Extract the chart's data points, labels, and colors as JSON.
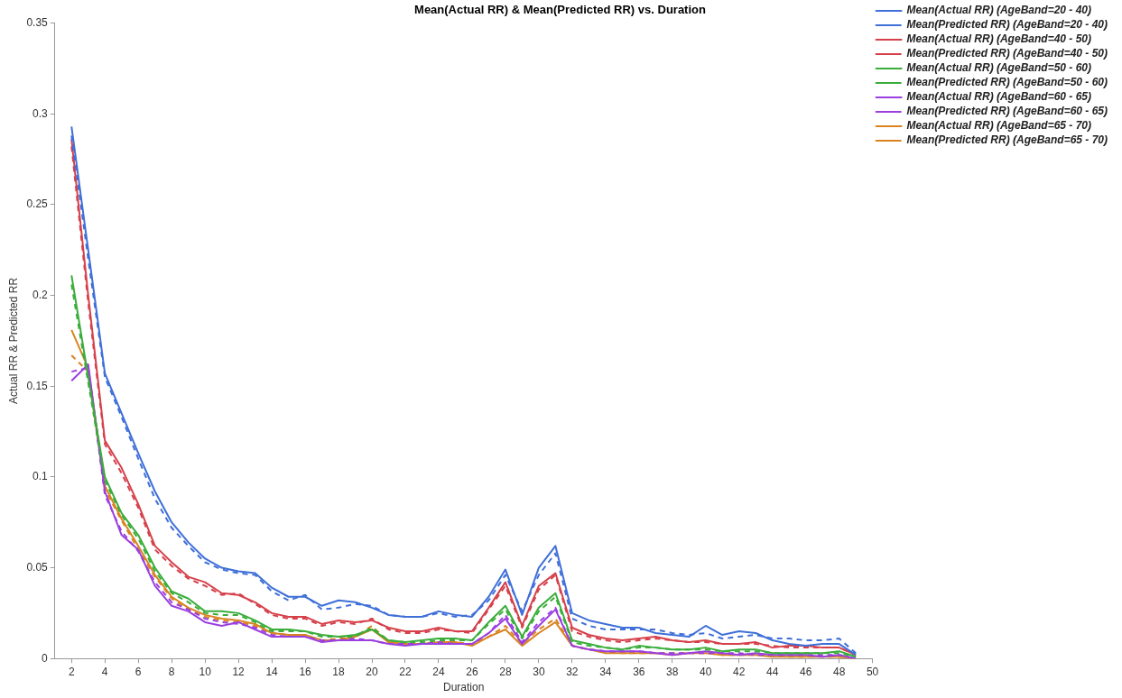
{
  "chart_data": {
    "type": "line",
    "title": "Mean(Actual RR) & Mean(Predicted RR) vs. Duration",
    "xlabel": "Duration",
    "ylabel": "Actual RR & Predicted RR",
    "x": [
      2,
      3,
      4,
      5,
      6,
      7,
      8,
      9,
      10,
      11,
      12,
      13,
      14,
      15,
      16,
      17,
      18,
      19,
      20,
      21,
      22,
      23,
      24,
      25,
      26,
      27,
      28,
      29,
      30,
      31,
      32,
      33,
      34,
      35,
      36,
      37,
      38,
      39,
      40,
      41,
      42,
      43,
      44,
      45,
      46,
      47,
      48,
      49
    ],
    "xlim": [
      1,
      50
    ],
    "xticks": [
      2,
      4,
      6,
      8,
      10,
      12,
      14,
      16,
      18,
      20,
      22,
      24,
      26,
      28,
      30,
      32,
      34,
      36,
      38,
      40,
      42,
      44,
      46,
      48,
      50
    ],
    "ylim": [
      0,
      0.35
    ],
    "yticks": [
      0,
      0.05,
      0.1,
      0.15,
      0.2,
      0.25,
      0.3,
      0.35
    ],
    "grid": false,
    "legend": "top right",
    "marker": "none",
    "series": [
      {
        "name": "Mean(Actual RR) (AgeBand=20 - 40)",
        "color": "#3f6fd8",
        "line_style": "solid",
        "values": [
          0.293,
          0.225,
          0.157,
          0.135,
          0.113,
          0.092,
          0.075,
          0.064,
          0.055,
          0.05,
          0.048,
          0.047,
          0.039,
          0.034,
          0.034,
          0.029,
          0.032,
          0.031,
          0.028,
          0.024,
          0.023,
          0.023,
          0.026,
          0.024,
          0.023,
          0.034,
          0.049,
          0.024,
          0.05,
          0.062,
          0.025,
          0.021,
          0.019,
          0.017,
          0.017,
          0.014,
          0.013,
          0.012,
          0.018,
          0.013,
          0.015,
          0.014,
          0.01,
          0.008,
          0.007,
          0.008,
          0.008,
          0.002
        ]
      },
      {
        "name": "Mean(Predicted RR) (AgeBand=20 - 40)",
        "color": "#3f6fd8",
        "line_style": "dashed",
        "values": [
          0.288,
          0.22,
          0.155,
          0.133,
          0.11,
          0.088,
          0.072,
          0.062,
          0.053,
          0.049,
          0.047,
          0.046,
          0.037,
          0.032,
          0.035,
          0.027,
          0.028,
          0.03,
          0.029,
          0.024,
          0.023,
          0.023,
          0.025,
          0.023,
          0.024,
          0.032,
          0.046,
          0.026,
          0.046,
          0.058,
          0.022,
          0.018,
          0.016,
          0.016,
          0.016,
          0.016,
          0.014,
          0.013,
          0.014,
          0.011,
          0.012,
          0.013,
          0.011,
          0.011,
          0.01,
          0.01,
          0.011,
          0.003
        ]
      },
      {
        "name": "Mean(Actual RR) (AgeBand=40 - 50)",
        "color": "#d6404a",
        "line_style": "solid",
        "values": [
          0.286,
          0.2,
          0.12,
          0.105,
          0.085,
          0.062,
          0.053,
          0.045,
          0.042,
          0.036,
          0.035,
          0.031,
          0.025,
          0.023,
          0.023,
          0.019,
          0.021,
          0.02,
          0.021,
          0.017,
          0.015,
          0.015,
          0.017,
          0.015,
          0.015,
          0.028,
          0.042,
          0.018,
          0.04,
          0.047,
          0.017,
          0.013,
          0.011,
          0.01,
          0.011,
          0.012,
          0.01,
          0.009,
          0.01,
          0.008,
          0.008,
          0.009,
          0.006,
          0.007,
          0.007,
          0.006,
          0.006,
          0.002
        ]
      },
      {
        "name": "Mean(Predicted RR) (AgeBand=40 - 50)",
        "color": "#d6404a",
        "line_style": "dashed",
        "values": [
          0.282,
          0.196,
          0.118,
          0.102,
          0.083,
          0.06,
          0.051,
          0.044,
          0.04,
          0.035,
          0.036,
          0.03,
          0.024,
          0.022,
          0.022,
          0.018,
          0.02,
          0.019,
          0.022,
          0.016,
          0.014,
          0.014,
          0.016,
          0.015,
          0.014,
          0.027,
          0.04,
          0.017,
          0.038,
          0.046,
          0.015,
          0.012,
          0.01,
          0.009,
          0.01,
          0.011,
          0.01,
          0.009,
          0.009,
          0.008,
          0.008,
          0.008,
          0.007,
          0.006,
          0.006,
          0.006,
          0.006,
          0.002
        ]
      },
      {
        "name": "Mean(Actual RR) (AgeBand=50 - 60)",
        "color": "#3aad3a",
        "line_style": "solid",
        "values": [
          0.211,
          0.155,
          0.1,
          0.08,
          0.068,
          0.05,
          0.037,
          0.033,
          0.026,
          0.026,
          0.025,
          0.021,
          0.016,
          0.016,
          0.015,
          0.013,
          0.012,
          0.013,
          0.016,
          0.01,
          0.009,
          0.01,
          0.011,
          0.011,
          0.01,
          0.02,
          0.029,
          0.012,
          0.028,
          0.036,
          0.01,
          0.008,
          0.006,
          0.005,
          0.007,
          0.006,
          0.005,
          0.005,
          0.006,
          0.004,
          0.005,
          0.005,
          0.003,
          0.003,
          0.003,
          0.003,
          0.004,
          0.001
        ]
      },
      {
        "name": "Mean(Predicted RR) (AgeBand=50 - 60)",
        "color": "#3aad3a",
        "line_style": "dashed",
        "values": [
          0.206,
          0.152,
          0.098,
          0.079,
          0.066,
          0.048,
          0.036,
          0.031,
          0.025,
          0.024,
          0.024,
          0.02,
          0.015,
          0.015,
          0.015,
          0.012,
          0.012,
          0.012,
          0.017,
          0.01,
          0.009,
          0.009,
          0.01,
          0.01,
          0.01,
          0.019,
          0.027,
          0.011,
          0.026,
          0.034,
          0.009,
          0.007,
          0.006,
          0.005,
          0.006,
          0.006,
          0.005,
          0.005,
          0.005,
          0.004,
          0.004,
          0.004,
          0.003,
          0.003,
          0.003,
          0.003,
          0.003,
          0.001
        ]
      },
      {
        "name": "Mean(Actual RR) (AgeBand=60 - 65)",
        "color": "#9b3fe0",
        "line_style": "solid",
        "values": [
          0.153,
          0.162,
          0.092,
          0.068,
          0.06,
          0.04,
          0.029,
          0.026,
          0.02,
          0.018,
          0.02,
          0.016,
          0.012,
          0.012,
          0.012,
          0.009,
          0.01,
          0.01,
          0.01,
          0.008,
          0.007,
          0.008,
          0.008,
          0.008,
          0.008,
          0.014,
          0.022,
          0.008,
          0.018,
          0.027,
          0.007,
          0.005,
          0.004,
          0.004,
          0.004,
          0.003,
          0.002,
          0.003,
          0.004,
          0.003,
          0.002,
          0.003,
          0.002,
          0.002,
          0.002,
          0.001,
          0.002,
          0.0
        ]
      },
      {
        "name": "Mean(Predicted RR) (AgeBand=60 - 65)",
        "color": "#9b3fe0",
        "line_style": "dashed",
        "values": [
          0.158,
          0.16,
          0.09,
          0.07,
          0.059,
          0.042,
          0.031,
          0.027,
          0.022,
          0.02,
          0.019,
          0.017,
          0.013,
          0.012,
          0.012,
          0.01,
          0.01,
          0.011,
          0.01,
          0.008,
          0.008,
          0.008,
          0.009,
          0.008,
          0.008,
          0.014,
          0.024,
          0.009,
          0.02,
          0.028,
          0.007,
          0.005,
          0.004,
          0.004,
          0.004,
          0.003,
          0.003,
          0.003,
          0.003,
          0.003,
          0.003,
          0.002,
          0.002,
          0.002,
          0.002,
          0.002,
          0.002,
          0.0
        ]
      },
      {
        "name": "Mean(Actual RR) (AgeBand=65 - 70)",
        "color": "#d98420",
        "line_style": "solid",
        "values": [
          0.181,
          0.16,
          0.095,
          0.077,
          0.062,
          0.046,
          0.034,
          0.028,
          0.024,
          0.022,
          0.021,
          0.019,
          0.014,
          0.013,
          0.013,
          0.01,
          0.01,
          0.012,
          0.016,
          0.009,
          0.008,
          0.008,
          0.009,
          0.009,
          0.007,
          0.012,
          0.016,
          0.007,
          0.014,
          0.02,
          0.007,
          0.005,
          0.003,
          0.003,
          0.003,
          0.003,
          0.002,
          0.003,
          0.003,
          0.002,
          0.002,
          0.002,
          0.001,
          0.001,
          0.001,
          0.001,
          0.001,
          0.0
        ]
      },
      {
        "name": "Mean(Predicted RR) (AgeBand=65 - 70)",
        "color": "#d98420",
        "line_style": "dashed",
        "values": [
          0.167,
          0.158,
          0.093,
          0.076,
          0.06,
          0.045,
          0.033,
          0.027,
          0.023,
          0.021,
          0.02,
          0.018,
          0.014,
          0.013,
          0.012,
          0.01,
          0.011,
          0.012,
          0.018,
          0.009,
          0.008,
          0.008,
          0.009,
          0.009,
          0.008,
          0.012,
          0.018,
          0.008,
          0.016,
          0.022,
          0.007,
          0.005,
          0.004,
          0.003,
          0.003,
          0.003,
          0.003,
          0.003,
          0.003,
          0.002,
          0.002,
          0.002,
          0.002,
          0.001,
          0.001,
          0.001,
          0.001,
          0.0
        ]
      }
    ]
  }
}
